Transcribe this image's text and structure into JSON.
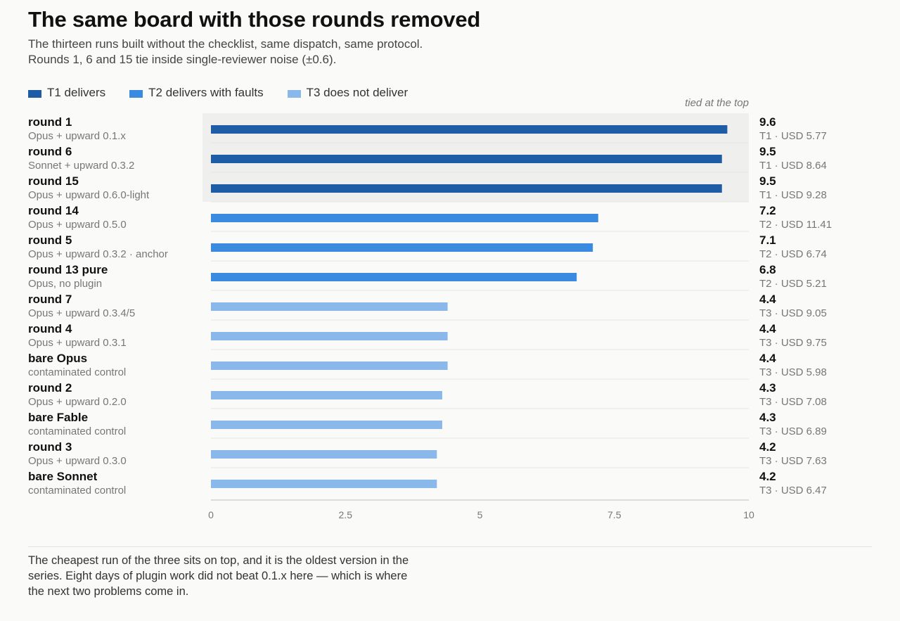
{
  "title": "The same board with those rounds removed",
  "subtitle": "The thirteen runs built without the checklist, same dispatch, same protocol. Rounds 1, 6 and 15 tie inside single-reviewer noise (±0.6).",
  "legend": [
    {
      "label": "T1 delivers",
      "color": "#1f5ca6"
    },
    {
      "label": "T2 delivers with faults",
      "color": "#3a8ae0"
    },
    {
      "label": "T3 does not deliver",
      "color": "#8ab8ea"
    }
  ],
  "tied_note": "tied at the top",
  "footnote": "The cheapest run of the three sits on top, and it is the oldest version in the series. Eight days of plugin work did not beat 0.1.x here — which is where the next two problems come in.",
  "colors": {
    "T1": "#1f5ca6",
    "T2": "#3a8ae0",
    "T3": "#8ab8ea",
    "highlight": "#efefed"
  },
  "chart_data": {
    "type": "bar",
    "orientation": "horizontal",
    "xlim": [
      0,
      10
    ],
    "xticks": [
      "0",
      "2.5",
      "5",
      "7.5",
      "10"
    ],
    "xtick_values": [
      0,
      2.5,
      5,
      7.5,
      10
    ],
    "highlighted_rows": [
      0,
      1,
      2
    ],
    "rows": [
      {
        "name": "round 1",
        "sub": "Opus + upward 0.1.x",
        "value": 9.6,
        "value_label": "9.6",
        "tier": "T1",
        "cost": "T1 · USD 5.77"
      },
      {
        "name": "round 6",
        "sub": "Sonnet + upward 0.3.2",
        "value": 9.5,
        "value_label": "9.5",
        "tier": "T1",
        "cost": "T1 · USD 8.64"
      },
      {
        "name": "round 15",
        "sub": "Opus + upward 0.6.0-light",
        "value": 9.5,
        "value_label": "9.5",
        "tier": "T1",
        "cost": "T1 · USD 9.28"
      },
      {
        "name": "round 14",
        "sub": "Opus + upward 0.5.0",
        "value": 7.2,
        "value_label": "7.2",
        "tier": "T2",
        "cost": "T2 · USD 11.41"
      },
      {
        "name": "round 5",
        "sub": "Opus + upward 0.3.2 · anchor",
        "value": 7.1,
        "value_label": "7.1",
        "tier": "T2",
        "cost": "T2 · USD 6.74"
      },
      {
        "name": "round 13 pure",
        "sub": "Opus, no plugin",
        "value": 6.8,
        "value_label": "6.8",
        "tier": "T2",
        "cost": "T2 · USD 5.21"
      },
      {
        "name": "round 7",
        "sub": "Opus + upward 0.3.4/5",
        "value": 4.4,
        "value_label": "4.4",
        "tier": "T3",
        "cost": "T3 · USD 9.05"
      },
      {
        "name": "round 4",
        "sub": "Opus + upward 0.3.1",
        "value": 4.4,
        "value_label": "4.4",
        "tier": "T3",
        "cost": "T3 · USD 9.75"
      },
      {
        "name": "bare Opus",
        "sub": "contaminated control",
        "value": 4.4,
        "value_label": "4.4",
        "tier": "T3",
        "cost": "T3 · USD 5.98"
      },
      {
        "name": "round 2",
        "sub": "Opus + upward 0.2.0",
        "value": 4.3,
        "value_label": "4.3",
        "tier": "T3",
        "cost": "T3 · USD 7.08"
      },
      {
        "name": "bare Fable",
        "sub": "contaminated control",
        "value": 4.3,
        "value_label": "4.3",
        "tier": "T3",
        "cost": "T3 · USD 6.89"
      },
      {
        "name": "round 3",
        "sub": "Opus + upward 0.3.0",
        "value": 4.2,
        "value_label": "4.2",
        "tier": "T3",
        "cost": "T3 · USD 7.63"
      },
      {
        "name": "bare Sonnet",
        "sub": "contaminated control",
        "value": 4.2,
        "value_label": "4.2",
        "tier": "T3",
        "cost": "T3 · USD 6.47"
      }
    ]
  }
}
